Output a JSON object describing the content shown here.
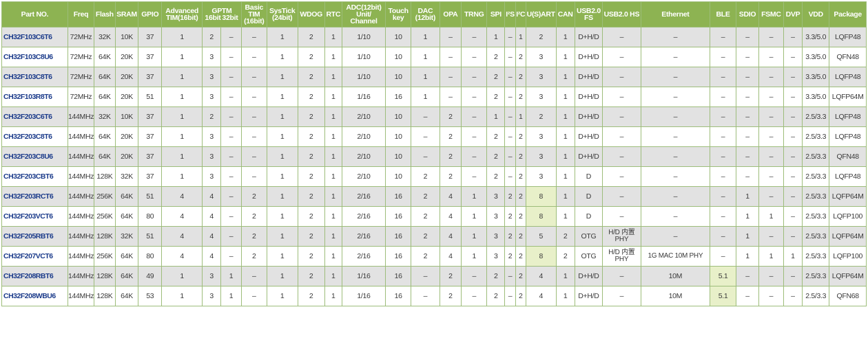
{
  "headers": {
    "part": "Part NO.",
    "freq": "Freq",
    "flash": "Flash",
    "sram": "SRAM",
    "gpio": "GPIO",
    "advanced": "Advanced TIM(16bit)",
    "gptm": "GPTM",
    "gptm16": "16bit",
    "gptm32": "32bit",
    "basic": "Basic TIM (16bit)",
    "systick": "SysTick (24bit)",
    "wdog": "WDOG",
    "rtc": "RTC",
    "adc": "ADC(12bit) Unit/ Channel",
    "touch": "Touch key",
    "dac": "DAC (12bit)",
    "opa": "OPA",
    "trng": "TRNG",
    "spi": "SPI",
    "i2s": "I²S",
    "i2c": "I²C",
    "usart": "U(S)ART",
    "can": "CAN",
    "usbfs": "USB2.0 FS",
    "usbhs": "USB2.0 HS",
    "eth": "Ethernet",
    "ble": "BLE",
    "sdio": "SDIO",
    "fsmc": "FSMC",
    "dvp": "DVP",
    "vdd": "VDD",
    "pkg": "Package"
  },
  "rows": [
    {
      "part": "CH32F103C6T6",
      "freq": "72MHz",
      "flash": "32K",
      "sram": "10K",
      "gpio": "37",
      "adv": "1",
      "g16": "2",
      "g32": "–",
      "basic": "–",
      "systick": "1",
      "wdog": "2",
      "rtc": "1",
      "adc": "1/10",
      "touch": "10",
      "dac": "1",
      "opa": "–",
      "trng": "–",
      "spi": "1",
      "i2s": "–",
      "i2c": "1",
      "usart": "2",
      "can": "1",
      "usbfs": "D+H/D",
      "usbhs": "–",
      "eth": "–",
      "ble": "–",
      "sdio": "–",
      "fsmc": "–",
      "dvp": "–",
      "vdd": "3.3/5.0",
      "pkg": "LQFP48"
    },
    {
      "part": "CH32F103C8U6",
      "freq": "72MHz",
      "flash": "64K",
      "sram": "20K",
      "gpio": "37",
      "adv": "1",
      "g16": "3",
      "g32": "–",
      "basic": "–",
      "systick": "1",
      "wdog": "2",
      "rtc": "1",
      "adc": "1/10",
      "touch": "10",
      "dac": "1",
      "opa": "–",
      "trng": "–",
      "spi": "2",
      "i2s": "–",
      "i2c": "2",
      "usart": "3",
      "can": "1",
      "usbfs": "D+H/D",
      "usbhs": "–",
      "eth": "–",
      "ble": "–",
      "sdio": "–",
      "fsmc": "–",
      "dvp": "–",
      "vdd": "3.3/5.0",
      "pkg": "QFN48"
    },
    {
      "part": "CH32F103C8T6",
      "freq": "72MHz",
      "flash": "64K",
      "sram": "20K",
      "gpio": "37",
      "adv": "1",
      "g16": "3",
      "g32": "–",
      "basic": "–",
      "systick": "1",
      "wdog": "2",
      "rtc": "1",
      "adc": "1/10",
      "touch": "10",
      "dac": "1",
      "opa": "–",
      "trng": "–",
      "spi": "2",
      "i2s": "–",
      "i2c": "2",
      "usart": "3",
      "can": "1",
      "usbfs": "D+H/D",
      "usbhs": "–",
      "eth": "–",
      "ble": "–",
      "sdio": "–",
      "fsmc": "–",
      "dvp": "–",
      "vdd": "3.3/5.0",
      "pkg": "LQFP48"
    },
    {
      "part": "CH32F103R8T6",
      "freq": "72MHz",
      "flash": "64K",
      "sram": "20K",
      "gpio": "51",
      "adv": "1",
      "g16": "3",
      "g32": "–",
      "basic": "–",
      "systick": "1",
      "wdog": "2",
      "rtc": "1",
      "adc": "1/16",
      "touch": "16",
      "dac": "1",
      "opa": "–",
      "trng": "–",
      "spi": "2",
      "i2s": "–",
      "i2c": "2",
      "usart": "3",
      "can": "1",
      "usbfs": "D+H/D",
      "usbhs": "–",
      "eth": "–",
      "ble": "–",
      "sdio": "–",
      "fsmc": "–",
      "dvp": "–",
      "vdd": "3.3/5.0",
      "pkg": "LQFP64M"
    },
    {
      "part": "CH32F203C6T6",
      "freq": "144MHz",
      "flash": "32K",
      "sram": "10K",
      "gpio": "37",
      "adv": "1",
      "g16": "2",
      "g32": "–",
      "basic": "–",
      "systick": "1",
      "wdog": "2",
      "rtc": "1",
      "adc": "2/10",
      "touch": "10",
      "dac": "–",
      "opa": "2",
      "trng": "–",
      "spi": "1",
      "i2s": "–",
      "i2c": "1",
      "usart": "2",
      "can": "1",
      "usbfs": "D+H/D",
      "usbhs": "–",
      "eth": "–",
      "ble": "–",
      "sdio": "–",
      "fsmc": "–",
      "dvp": "–",
      "vdd": "2.5/3.3",
      "pkg": "LQFP48"
    },
    {
      "part": "CH32F203C8T6",
      "freq": "144MHz",
      "flash": "64K",
      "sram": "20K",
      "gpio": "37",
      "adv": "1",
      "g16": "3",
      "g32": "–",
      "basic": "–",
      "systick": "1",
      "wdog": "2",
      "rtc": "1",
      "adc": "2/10",
      "touch": "10",
      "dac": "–",
      "opa": "2",
      "trng": "–",
      "spi": "2",
      "i2s": "–",
      "i2c": "2",
      "usart": "3",
      "can": "1",
      "usbfs": "D+H/D",
      "usbhs": "–",
      "eth": "–",
      "ble": "–",
      "sdio": "–",
      "fsmc": "–",
      "dvp": "–",
      "vdd": "2.5/3.3",
      "pkg": "LQFP48"
    },
    {
      "part": "CH32F203C8U6",
      "freq": "144MHz",
      "flash": "64K",
      "sram": "20K",
      "gpio": "37",
      "adv": "1",
      "g16": "3",
      "g32": "–",
      "basic": "–",
      "systick": "1",
      "wdog": "2",
      "rtc": "1",
      "adc": "2/10",
      "touch": "10",
      "dac": "–",
      "opa": "2",
      "trng": "–",
      "spi": "2",
      "i2s": "–",
      "i2c": "2",
      "usart": "3",
      "can": "1",
      "usbfs": "D+H/D",
      "usbhs": "–",
      "eth": "–",
      "ble": "–",
      "sdio": "–",
      "fsmc": "–",
      "dvp": "–",
      "vdd": "2.5/3.3",
      "pkg": "QFN48"
    },
    {
      "part": "CH32F203CBT6",
      "freq": "144MHz",
      "flash": "128K",
      "sram": "32K",
      "gpio": "37",
      "adv": "1",
      "g16": "3",
      "g32": "–",
      "basic": "–",
      "systick": "1",
      "wdog": "2",
      "rtc": "1",
      "adc": "2/10",
      "touch": "10",
      "dac": "2",
      "opa": "2",
      "trng": "–",
      "spi": "2",
      "i2s": "–",
      "i2c": "2",
      "usart": "3",
      "can": "1",
      "usbfs": "D",
      "usbhs": "–",
      "eth": "–",
      "ble": "–",
      "sdio": "–",
      "fsmc": "–",
      "dvp": "–",
      "vdd": "2.5/3.3",
      "pkg": "LQFP48"
    },
    {
      "part": "CH32F203RCT6",
      "freq": "144MHz",
      "flash": "256K",
      "sram": "64K",
      "gpio": "51",
      "adv": "4",
      "g16": "4",
      "g32": "–",
      "basic": "2",
      "systick": "1",
      "wdog": "2",
      "rtc": "1",
      "adc": "2/16",
      "touch": "16",
      "dac": "2",
      "opa": "4",
      "trng": "1",
      "spi": "3",
      "i2s": "2",
      "i2c": "2",
      "usart": "8",
      "can": "1",
      "usbfs": "D",
      "usbhs": "–",
      "eth": "–",
      "ble": "–",
      "sdio": "1",
      "fsmc": "–",
      "dvp": "–",
      "vdd": "2.5/3.3",
      "pkg": "LQFP64M"
    },
    {
      "part": "CH32F203VCT6",
      "freq": "144MHz",
      "flash": "256K",
      "sram": "64K",
      "gpio": "80",
      "adv": "4",
      "g16": "4",
      "g32": "–",
      "basic": "2",
      "systick": "1",
      "wdog": "2",
      "rtc": "1",
      "adc": "2/16",
      "touch": "16",
      "dac": "2",
      "opa": "4",
      "trng": "1",
      "spi": "3",
      "i2s": "2",
      "i2c": "2",
      "usart": "8",
      "can": "1",
      "usbfs": "D",
      "usbhs": "–",
      "eth": "–",
      "ble": "–",
      "sdio": "1",
      "fsmc": "1",
      "dvp": "–",
      "vdd": "2.5/3.3",
      "pkg": "LQFP100"
    },
    {
      "part": "CH32F205RBT6",
      "freq": "144MHz",
      "flash": "128K",
      "sram": "32K",
      "gpio": "51",
      "adv": "4",
      "g16": "4",
      "g32": "–",
      "basic": "2",
      "systick": "1",
      "wdog": "2",
      "rtc": "1",
      "adc": "2/16",
      "touch": "16",
      "dac": "2",
      "opa": "4",
      "trng": "1",
      "spi": "3",
      "i2s": "2",
      "i2c": "2",
      "usart": "5",
      "can": "2",
      "usbfs": "OTG",
      "usbhs": "H/D 内置PHY",
      "eth": "–",
      "ble": "–",
      "sdio": "1",
      "fsmc": "–",
      "dvp": "–",
      "vdd": "2.5/3.3",
      "pkg": "LQFP64M"
    },
    {
      "part": "CH32F207VCT6",
      "freq": "144MHz",
      "flash": "256K",
      "sram": "64K",
      "gpio": "80",
      "adv": "4",
      "g16": "4",
      "g32": "–",
      "basic": "2",
      "systick": "1",
      "wdog": "2",
      "rtc": "1",
      "adc": "2/16",
      "touch": "16",
      "dac": "2",
      "opa": "4",
      "trng": "1",
      "spi": "3",
      "i2s": "2",
      "i2c": "2",
      "usart": "8",
      "can": "2",
      "usbfs": "OTG",
      "usbhs": "H/D 内置PHY",
      "eth": "1G MAC 10M PHY",
      "ble": "–",
      "sdio": "1",
      "fsmc": "1",
      "dvp": "1",
      "vdd": "2.5/3.3",
      "pkg": "LQFP100"
    },
    {
      "part": "CH32F208RBT6",
      "freq": "144MHz",
      "flash": "128K",
      "sram": "64K",
      "gpio": "49",
      "adv": "1",
      "g16": "3",
      "g32": "1",
      "basic": "–",
      "systick": "1",
      "wdog": "2",
      "rtc": "1",
      "adc": "1/16",
      "touch": "16",
      "dac": "–",
      "opa": "2",
      "trng": "–",
      "spi": "2",
      "i2s": "–",
      "i2c": "2",
      "usart": "4",
      "can": "1",
      "usbfs": "D+H/D",
      "usbhs": "–",
      "eth": "10M",
      "ble": "5.1",
      "sdio": "–",
      "fsmc": "–",
      "dvp": "–",
      "vdd": "2.5/3.3",
      "pkg": "LQFP64M"
    },
    {
      "part": "CH32F208WBU6",
      "freq": "144MHz",
      "flash": "128K",
      "sram": "64K",
      "gpio": "53",
      "adv": "1",
      "g16": "3",
      "g32": "1",
      "basic": "–",
      "systick": "1",
      "wdog": "2",
      "rtc": "1",
      "adc": "1/16",
      "touch": "16",
      "dac": "–",
      "opa": "2",
      "trng": "–",
      "spi": "2",
      "i2s": "–",
      "i2c": "2",
      "usart": "4",
      "can": "1",
      "usbfs": "D+H/D",
      "usbhs": "–",
      "eth": "10M",
      "ble": "5.1",
      "sdio": "–",
      "fsmc": "–",
      "dvp": "–",
      "vdd": "2.5/3.3",
      "pkg": "QFN68"
    }
  ],
  "highlight": {
    "usart_rows": [
      8,
      9,
      11
    ],
    "ble_rows": [
      12,
      13
    ],
    "color": "#e8f0c9"
  }
}
